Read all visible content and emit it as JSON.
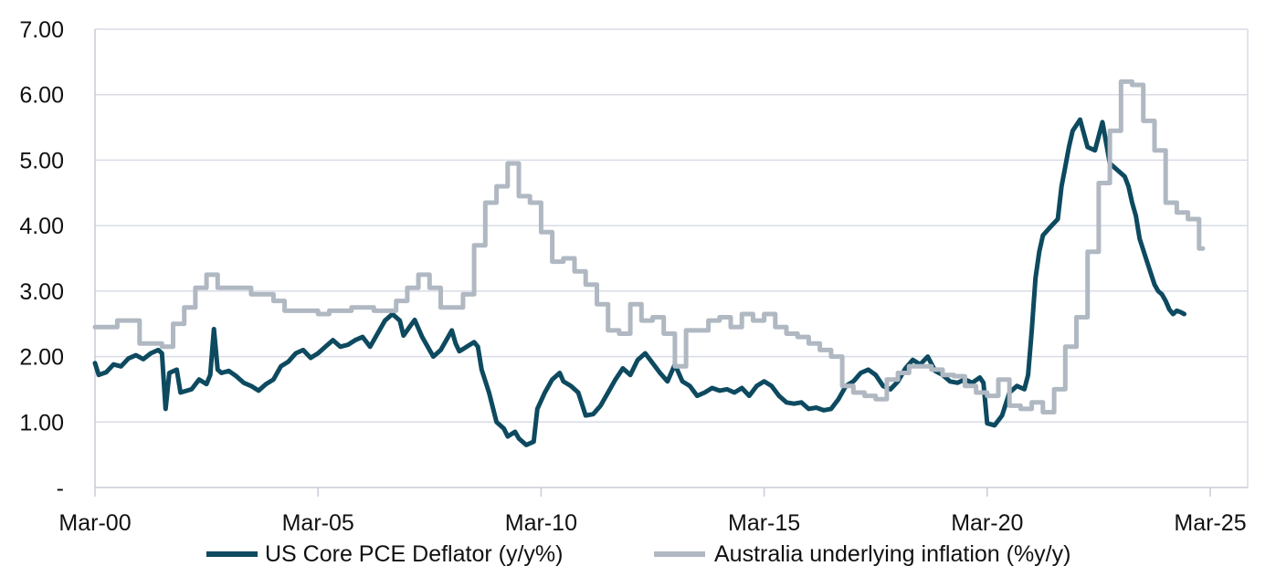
{
  "chart_data": {
    "type": "line",
    "title": "",
    "xlabel": "",
    "ylabel": "",
    "x_range": [
      "2000-03",
      "2025-03"
    ],
    "ylim": [
      0,
      7
    ],
    "grid": "horizontal",
    "legend_position": "bottom",
    "x_tick_labels": [
      "Mar-00",
      "Mar-05",
      "Mar-10",
      "Mar-15",
      "Mar-20",
      "Mar-25"
    ],
    "y_tick_labels": [
      "-",
      "1.00",
      "2.00",
      "3.00",
      "4.00",
      "5.00",
      "6.00",
      "7.00"
    ],
    "colors": {
      "grid": "#d9dce6",
      "axis": "#c8ccd6"
    },
    "series": [
      {
        "name": "US Core PCE Deflator (y/y%)",
        "color": "#0d4a60",
        "step": false,
        "points": [
          [
            "2000-03",
            1.9
          ],
          [
            "2000-04",
            1.72
          ],
          [
            "2000-06",
            1.76
          ],
          [
            "2000-08",
            1.88
          ],
          [
            "2000-10",
            1.85
          ],
          [
            "2000-12",
            1.97
          ],
          [
            "2001-02",
            2.02
          ],
          [
            "2001-04",
            1.96
          ],
          [
            "2001-06",
            2.05
          ],
          [
            "2001-08",
            2.1
          ],
          [
            "2001-09",
            2.05
          ],
          [
            "2001-10",
            1.2
          ],
          [
            "2001-11",
            1.75
          ],
          [
            "2002-01",
            1.8
          ],
          [
            "2002-02",
            1.45
          ],
          [
            "2002-05",
            1.5
          ],
          [
            "2002-07",
            1.65
          ],
          [
            "2002-09",
            1.58
          ],
          [
            "2002-10",
            1.72
          ],
          [
            "2002-11",
            2.42
          ],
          [
            "2002-12",
            1.8
          ],
          [
            "2003-01",
            1.75
          ],
          [
            "2003-03",
            1.78
          ],
          [
            "2003-05",
            1.7
          ],
          [
            "2003-07",
            1.6
          ],
          [
            "2003-09",
            1.55
          ],
          [
            "2003-11",
            1.48
          ],
          [
            "2004-01",
            1.58
          ],
          [
            "2004-03",
            1.65
          ],
          [
            "2004-05",
            1.85
          ],
          [
            "2004-07",
            1.92
          ],
          [
            "2004-09",
            2.05
          ],
          [
            "2004-11",
            2.1
          ],
          [
            "2005-01",
            1.98
          ],
          [
            "2005-03",
            2.05
          ],
          [
            "2005-05",
            2.15
          ],
          [
            "2005-07",
            2.25
          ],
          [
            "2005-09",
            2.15
          ],
          [
            "2005-11",
            2.18
          ],
          [
            "2006-01",
            2.25
          ],
          [
            "2006-03",
            2.3
          ],
          [
            "2006-05",
            2.15
          ],
          [
            "2006-07",
            2.35
          ],
          [
            "2006-09",
            2.55
          ],
          [
            "2006-11",
            2.65
          ],
          [
            "2007-01",
            2.55
          ],
          [
            "2007-02",
            2.32
          ],
          [
            "2007-04",
            2.48
          ],
          [
            "2007-05",
            2.56
          ],
          [
            "2007-07",
            2.3
          ],
          [
            "2007-09",
            2.1
          ],
          [
            "2007-10",
            2.0
          ],
          [
            "2007-12",
            2.1
          ],
          [
            "2008-02",
            2.3
          ],
          [
            "2008-03",
            2.4
          ],
          [
            "2008-04",
            2.2
          ],
          [
            "2008-05",
            2.08
          ],
          [
            "2008-07",
            2.15
          ],
          [
            "2008-09",
            2.22
          ],
          [
            "2008-10",
            2.15
          ],
          [
            "2008-11",
            1.8
          ],
          [
            "2009-01",
            1.45
          ],
          [
            "2009-03",
            1.0
          ],
          [
            "2009-05",
            0.9
          ],
          [
            "2009-06",
            0.78
          ],
          [
            "2009-08",
            0.85
          ],
          [
            "2009-09",
            0.75
          ],
          [
            "2009-11",
            0.65
          ],
          [
            "2010-01",
            0.7
          ],
          [
            "2010-02",
            1.2
          ],
          [
            "2010-04",
            1.45
          ],
          [
            "2010-06",
            1.65
          ],
          [
            "2010-08",
            1.75
          ],
          [
            "2010-09",
            1.62
          ],
          [
            "2010-11",
            1.55
          ],
          [
            "2011-01",
            1.45
          ],
          [
            "2011-03",
            1.1
          ],
          [
            "2011-05",
            1.12
          ],
          [
            "2011-07",
            1.25
          ],
          [
            "2011-09",
            1.45
          ],
          [
            "2011-11",
            1.65
          ],
          [
            "2012-01",
            1.82
          ],
          [
            "2012-03",
            1.72
          ],
          [
            "2012-05",
            1.95
          ],
          [
            "2012-07",
            2.05
          ],
          [
            "2012-09",
            1.9
          ],
          [
            "2012-11",
            1.75
          ],
          [
            "2013-01",
            1.62
          ],
          [
            "2013-03",
            1.88
          ],
          [
            "2013-05",
            1.62
          ],
          [
            "2013-07",
            1.55
          ],
          [
            "2013-09",
            1.4
          ],
          [
            "2013-11",
            1.45
          ],
          [
            "2014-01",
            1.52
          ],
          [
            "2014-03",
            1.48
          ],
          [
            "2014-05",
            1.5
          ],
          [
            "2014-07",
            1.45
          ],
          [
            "2014-09",
            1.52
          ],
          [
            "2014-11",
            1.4
          ],
          [
            "2015-01",
            1.55
          ],
          [
            "2015-03",
            1.62
          ],
          [
            "2015-05",
            1.55
          ],
          [
            "2015-07",
            1.4
          ],
          [
            "2015-09",
            1.3
          ],
          [
            "2015-11",
            1.28
          ],
          [
            "2016-01",
            1.3
          ],
          [
            "2016-03",
            1.2
          ],
          [
            "2016-05",
            1.22
          ],
          [
            "2016-07",
            1.18
          ],
          [
            "2016-09",
            1.2
          ],
          [
            "2016-11",
            1.35
          ],
          [
            "2017-01",
            1.55
          ],
          [
            "2017-03",
            1.62
          ],
          [
            "2017-05",
            1.75
          ],
          [
            "2017-07",
            1.8
          ],
          [
            "2017-09",
            1.72
          ],
          [
            "2017-11",
            1.55
          ],
          [
            "2018-01",
            1.5
          ],
          [
            "2018-03",
            1.62
          ],
          [
            "2018-05",
            1.82
          ],
          [
            "2018-07",
            1.95
          ],
          [
            "2018-09",
            1.88
          ],
          [
            "2018-11",
            2.0
          ],
          [
            "2019-01",
            1.78
          ],
          [
            "2019-03",
            1.72
          ],
          [
            "2019-05",
            1.62
          ],
          [
            "2019-07",
            1.6
          ],
          [
            "2019-09",
            1.65
          ],
          [
            "2019-11",
            1.6
          ],
          [
            "2020-01",
            1.68
          ],
          [
            "2020-02",
            1.6
          ],
          [
            "2020-03",
            0.98
          ],
          [
            "2020-05",
            0.95
          ],
          [
            "2020-07",
            1.1
          ],
          [
            "2020-09",
            1.45
          ],
          [
            "2020-11",
            1.55
          ],
          [
            "2021-01",
            1.5
          ],
          [
            "2021-02",
            1.72
          ],
          [
            "2021-03",
            2.4
          ],
          [
            "2021-04",
            3.2
          ],
          [
            "2021-05",
            3.6
          ],
          [
            "2021-06",
            3.85
          ],
          [
            "2021-08",
            3.98
          ],
          [
            "2021-10",
            4.1
          ],
          [
            "2021-11",
            4.6
          ],
          [
            "2021-12",
            4.9
          ],
          [
            "2022-01",
            5.2
          ],
          [
            "2022-02",
            5.45
          ],
          [
            "2022-04",
            5.62
          ],
          [
            "2022-06",
            5.2
          ],
          [
            "2022-08",
            5.15
          ],
          [
            "2022-10",
            5.58
          ],
          [
            "2022-12",
            4.95
          ],
          [
            "2023-02",
            4.85
          ],
          [
            "2023-04",
            4.75
          ],
          [
            "2023-05",
            4.6
          ],
          [
            "2023-06",
            4.35
          ],
          [
            "2023-07",
            4.15
          ],
          [
            "2023-08",
            3.8
          ],
          [
            "2023-10",
            3.45
          ],
          [
            "2023-12",
            3.1
          ],
          [
            "2024-01",
            3.0
          ],
          [
            "2024-02",
            2.95
          ],
          [
            "2024-03",
            2.85
          ],
          [
            "2024-04",
            2.72
          ],
          [
            "2024-05",
            2.65
          ],
          [
            "2024-06",
            2.7
          ],
          [
            "2024-07",
            2.68
          ],
          [
            "2024-08",
            2.65
          ]
        ]
      },
      {
        "name": "Australia underlying inflation (%y/y)",
        "color": "#b0b8c2",
        "step": true,
        "points": [
          [
            "2000-03",
            2.45
          ],
          [
            "2000-09",
            2.55
          ],
          [
            "2001-03",
            2.2
          ],
          [
            "2001-09",
            2.15
          ],
          [
            "2001-12",
            2.5
          ],
          [
            "2002-03",
            2.75
          ],
          [
            "2002-06",
            3.05
          ],
          [
            "2002-09",
            3.25
          ],
          [
            "2002-12",
            3.05
          ],
          [
            "2003-09",
            2.95
          ],
          [
            "2004-03",
            2.85
          ],
          [
            "2004-06",
            2.7
          ],
          [
            "2005-03",
            2.65
          ],
          [
            "2005-06",
            2.7
          ],
          [
            "2005-12",
            2.75
          ],
          [
            "2006-06",
            2.7
          ],
          [
            "2006-12",
            2.85
          ],
          [
            "2007-03",
            3.05
          ],
          [
            "2007-06",
            3.25
          ],
          [
            "2007-09",
            3.05
          ],
          [
            "2007-12",
            2.75
          ],
          [
            "2008-06",
            2.95
          ],
          [
            "2008-09",
            3.7
          ],
          [
            "2008-12",
            4.35
          ],
          [
            "2009-03",
            4.6
          ],
          [
            "2009-06",
            4.95
          ],
          [
            "2009-09",
            4.45
          ],
          [
            "2009-12",
            4.35
          ],
          [
            "2010-03",
            3.9
          ],
          [
            "2010-06",
            3.45
          ],
          [
            "2010-09",
            3.5
          ],
          [
            "2010-12",
            3.3
          ],
          [
            "2011-03",
            3.1
          ],
          [
            "2011-06",
            2.8
          ],
          [
            "2011-09",
            2.4
          ],
          [
            "2011-12",
            2.35
          ],
          [
            "2012-03",
            2.8
          ],
          [
            "2012-06",
            2.55
          ],
          [
            "2012-09",
            2.6
          ],
          [
            "2012-12",
            2.35
          ],
          [
            "2013-03",
            1.85
          ],
          [
            "2013-06",
            2.4
          ],
          [
            "2013-12",
            2.55
          ],
          [
            "2014-03",
            2.6
          ],
          [
            "2014-06",
            2.45
          ],
          [
            "2014-09",
            2.65
          ],
          [
            "2014-12",
            2.55
          ],
          [
            "2015-03",
            2.65
          ],
          [
            "2015-06",
            2.45
          ],
          [
            "2015-09",
            2.35
          ],
          [
            "2015-12",
            2.3
          ],
          [
            "2016-03",
            2.2
          ],
          [
            "2016-06",
            2.1
          ],
          [
            "2016-09",
            2.0
          ],
          [
            "2016-12",
            1.55
          ],
          [
            "2017-03",
            1.45
          ],
          [
            "2017-06",
            1.4
          ],
          [
            "2017-09",
            1.35
          ],
          [
            "2017-12",
            1.65
          ],
          [
            "2018-03",
            1.75
          ],
          [
            "2018-06",
            1.85
          ],
          [
            "2018-09",
            1.85
          ],
          [
            "2018-12",
            1.8
          ],
          [
            "2019-03",
            1.72
          ],
          [
            "2019-06",
            1.7
          ],
          [
            "2019-09",
            1.55
          ],
          [
            "2019-12",
            1.45
          ],
          [
            "2020-03",
            1.4
          ],
          [
            "2020-06",
            1.65
          ],
          [
            "2020-09",
            1.25
          ],
          [
            "2020-12",
            1.2
          ],
          [
            "2021-03",
            1.3
          ],
          [
            "2021-06",
            1.15
          ],
          [
            "2021-09",
            1.5
          ],
          [
            "2021-12",
            2.15
          ],
          [
            "2022-03",
            2.6
          ],
          [
            "2022-06",
            3.6
          ],
          [
            "2022-09",
            4.65
          ],
          [
            "2022-12",
            5.45
          ],
          [
            "2023-03",
            6.2
          ],
          [
            "2023-06",
            6.15
          ],
          [
            "2023-09",
            5.6
          ],
          [
            "2023-12",
            5.15
          ],
          [
            "2024-03",
            4.35
          ],
          [
            "2024-06",
            4.2
          ],
          [
            "2024-09",
            4.1
          ],
          [
            "2024-12",
            3.65
          ],
          [
            "2025-01",
            3.65
          ]
        ]
      }
    ]
  }
}
